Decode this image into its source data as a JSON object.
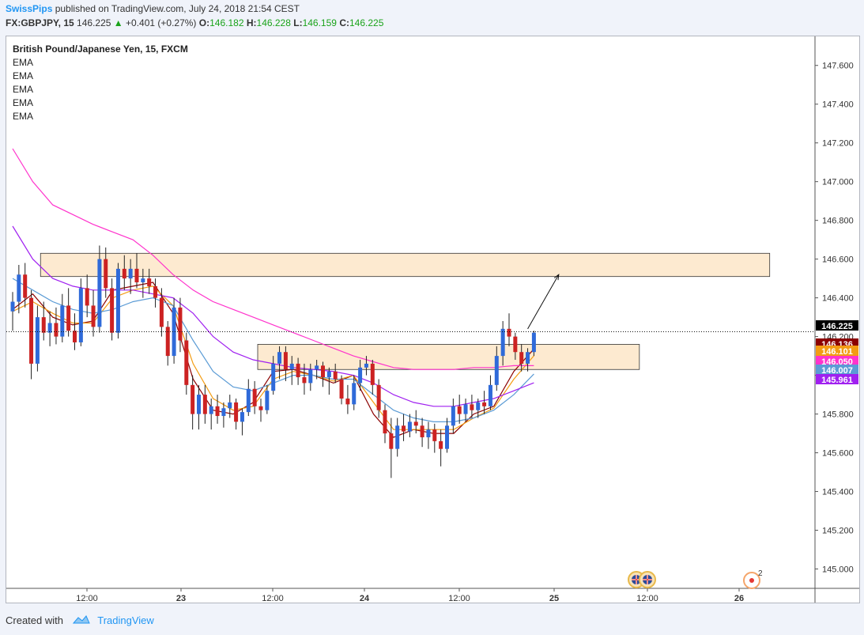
{
  "header": {
    "author": "SwissPips",
    "published": " published on TradingView.com, July 24, 2018 21:54 CEST",
    "symbol": "FX:GBPJPY, 15",
    "price": "146.225",
    "change_arrow": "▲",
    "change": "+0.401 (+0.27%)",
    "o_label": "O:",
    "o_value": "146.182",
    "h_label": "H:",
    "h_value": "146.228",
    "l_label": "L:",
    "l_value": "146.159",
    "c_label": "C:",
    "c_value": "146.225"
  },
  "legend": {
    "title": "British Pound/Japanese Yen, 15, FXCM",
    "indicators": [
      "EMA",
      "EMA",
      "EMA",
      "EMA",
      "EMA"
    ]
  },
  "footer": {
    "created_with": "Created with",
    "brand": "TradingView"
  },
  "events": {
    "count_label": "2"
  },
  "colors": {
    "up": "#2f6ad9",
    "down": "#cc2222",
    "ema_fast": "#8b0000",
    "ema_mid": "#f39c12",
    "ema_slow": "#5b9bd5",
    "ema_200": "#a020f0",
    "ema_400": "#ff33cc",
    "zone_fill": "#fde6c8",
    "zone_stroke": "#333333"
  },
  "chart_data": {
    "type": "candlestick",
    "ylim": [
      144.9,
      147.75
    ],
    "y_ticks": [
      "147.600",
      "147.400",
      "147.200",
      "147.000",
      "146.800",
      "146.600",
      "146.400",
      "146.200",
      "146.000",
      "145.800",
      "145.600",
      "145.400",
      "145.200",
      "145.000"
    ],
    "x_ticks": [
      "12:00",
      "23",
      "12:00",
      "24",
      "12:00",
      "25",
      "12:00",
      "26"
    ],
    "price_labels": [
      {
        "text": "146.225",
        "value": 146.225,
        "bg": "#000000",
        "fg": "#ffffff"
      },
      {
        "text": "146.136",
        "value": 146.136,
        "bg": "#8b0000",
        "fg": "#ffffff"
      },
      {
        "text": "146.101",
        "value": 146.101,
        "bg": "#f39c12",
        "fg": "#ffffff"
      },
      {
        "text": "146.050",
        "value": 146.05,
        "bg": "#ff33cc",
        "fg": "#ffffff"
      },
      {
        "text": "146.007",
        "value": 146.007,
        "bg": "#5b9bd5",
        "fg": "#ffffff"
      },
      {
        "text": "145.961",
        "value": 145.961,
        "bg": "#a020f0",
        "fg": "#ffffff"
      }
    ],
    "current_price": 146.225,
    "zones": [
      {
        "name": "resistance-zone",
        "from": 146.51,
        "to": 146.63,
        "start_bar": 5,
        "end_bar": 122
      },
      {
        "name": "support-zone",
        "from": 146.03,
        "to": 146.16,
        "start_bar": 40,
        "end_bar": 101
      }
    ],
    "projection": {
      "from_bar": 83,
      "from_price": 146.24,
      "to_bar": 88,
      "to_price": 146.52
    },
    "candles": [
      {
        "o": 146.33,
        "h": 146.43,
        "l": 146.23,
        "c": 146.38
      },
      {
        "o": 146.38,
        "h": 146.57,
        "l": 146.32,
        "c": 146.52
      },
      {
        "o": 146.52,
        "h": 146.58,
        "l": 146.35,
        "c": 146.4
      },
      {
        "o": 146.4,
        "h": 146.44,
        "l": 145.98,
        "c": 146.06
      },
      {
        "o": 146.06,
        "h": 146.36,
        "l": 146.02,
        "c": 146.3
      },
      {
        "o": 146.3,
        "h": 146.38,
        "l": 146.18,
        "c": 146.22
      },
      {
        "o": 146.22,
        "h": 146.33,
        "l": 146.15,
        "c": 146.27
      },
      {
        "o": 146.27,
        "h": 146.35,
        "l": 146.16,
        "c": 146.2
      },
      {
        "o": 146.2,
        "h": 146.42,
        "l": 146.17,
        "c": 146.36
      },
      {
        "o": 146.36,
        "h": 146.45,
        "l": 146.2,
        "c": 146.23
      },
      {
        "o": 146.23,
        "h": 146.32,
        "l": 146.13,
        "c": 146.17
      },
      {
        "o": 146.17,
        "h": 146.5,
        "l": 146.15,
        "c": 146.45
      },
      {
        "o": 146.45,
        "h": 146.52,
        "l": 146.3,
        "c": 146.36
      },
      {
        "o": 146.36,
        "h": 146.44,
        "l": 146.2,
        "c": 146.25
      },
      {
        "o": 146.25,
        "h": 146.67,
        "l": 146.22,
        "c": 146.6
      },
      {
        "o": 146.6,
        "h": 146.66,
        "l": 146.4,
        "c": 146.45
      },
      {
        "o": 146.45,
        "h": 146.5,
        "l": 146.18,
        "c": 146.22
      },
      {
        "o": 146.22,
        "h": 146.58,
        "l": 146.19,
        "c": 146.55
      },
      {
        "o": 146.55,
        "h": 146.62,
        "l": 146.44,
        "c": 146.5
      },
      {
        "o": 146.5,
        "h": 146.6,
        "l": 146.42,
        "c": 146.55
      },
      {
        "o": 146.55,
        "h": 146.63,
        "l": 146.45,
        "c": 146.48
      },
      {
        "o": 146.48,
        "h": 146.55,
        "l": 146.4,
        "c": 146.5
      },
      {
        "o": 146.5,
        "h": 146.55,
        "l": 146.42,
        "c": 146.46
      },
      {
        "o": 146.46,
        "h": 146.5,
        "l": 146.35,
        "c": 146.4
      },
      {
        "o": 146.4,
        "h": 146.45,
        "l": 146.2,
        "c": 146.25
      },
      {
        "o": 146.25,
        "h": 146.28,
        "l": 146.05,
        "c": 146.1
      },
      {
        "o": 146.1,
        "h": 146.4,
        "l": 146.06,
        "c": 146.35
      },
      {
        "o": 146.35,
        "h": 146.4,
        "l": 146.12,
        "c": 146.18
      },
      {
        "o": 146.18,
        "h": 146.22,
        "l": 145.9,
        "c": 145.95
      },
      {
        "o": 145.95,
        "h": 146.0,
        "l": 145.72,
        "c": 145.8
      },
      {
        "o": 145.8,
        "h": 145.95,
        "l": 145.72,
        "c": 145.9
      },
      {
        "o": 145.9,
        "h": 145.95,
        "l": 145.75,
        "c": 145.8
      },
      {
        "o": 145.8,
        "h": 145.88,
        "l": 145.72,
        "c": 145.84
      },
      {
        "o": 145.84,
        "h": 145.9,
        "l": 145.75,
        "c": 145.79
      },
      {
        "o": 145.79,
        "h": 145.86,
        "l": 145.73,
        "c": 145.83
      },
      {
        "o": 145.83,
        "h": 145.9,
        "l": 145.78,
        "c": 145.86
      },
      {
        "o": 145.86,
        "h": 145.88,
        "l": 145.72,
        "c": 145.76
      },
      {
        "o": 145.76,
        "h": 145.83,
        "l": 145.69,
        "c": 145.81
      },
      {
        "o": 145.81,
        "h": 145.98,
        "l": 145.79,
        "c": 145.93
      },
      {
        "o": 145.93,
        "h": 145.97,
        "l": 145.8,
        "c": 145.84
      },
      {
        "o": 145.84,
        "h": 145.88,
        "l": 145.76,
        "c": 145.82
      },
      {
        "o": 145.82,
        "h": 145.95,
        "l": 145.8,
        "c": 145.92
      },
      {
        "o": 145.92,
        "h": 146.1,
        "l": 145.9,
        "c": 146.06
      },
      {
        "o": 146.06,
        "h": 146.15,
        "l": 145.98,
        "c": 146.12
      },
      {
        "o": 146.12,
        "h": 146.15,
        "l": 145.97,
        "c": 146.03
      },
      {
        "o": 146.03,
        "h": 146.1,
        "l": 145.95,
        "c": 146.06
      },
      {
        "o": 146.06,
        "h": 146.09,
        "l": 145.95,
        "c": 145.99
      },
      {
        "o": 145.99,
        "h": 146.06,
        "l": 145.9,
        "c": 145.96
      },
      {
        "o": 145.96,
        "h": 146.06,
        "l": 145.92,
        "c": 146.03
      },
      {
        "o": 146.03,
        "h": 146.08,
        "l": 145.98,
        "c": 146.05
      },
      {
        "o": 146.05,
        "h": 146.07,
        "l": 145.94,
        "c": 145.99
      },
      {
        "o": 145.99,
        "h": 146.04,
        "l": 145.9,
        "c": 146.02
      },
      {
        "o": 146.02,
        "h": 146.06,
        "l": 145.96,
        "c": 145.98
      },
      {
        "o": 145.98,
        "h": 146.0,
        "l": 145.85,
        "c": 145.88
      },
      {
        "o": 145.88,
        "h": 145.95,
        "l": 145.8,
        "c": 145.85
      },
      {
        "o": 145.85,
        "h": 146.0,
        "l": 145.82,
        "c": 145.96
      },
      {
        "o": 145.96,
        "h": 146.08,
        "l": 145.92,
        "c": 146.04
      },
      {
        "o": 146.04,
        "h": 146.1,
        "l": 146.0,
        "c": 146.06
      },
      {
        "o": 146.06,
        "h": 146.08,
        "l": 145.9,
        "c": 145.95
      },
      {
        "o": 145.95,
        "h": 145.98,
        "l": 145.78,
        "c": 145.82
      },
      {
        "o": 145.82,
        "h": 145.85,
        "l": 145.65,
        "c": 145.7
      },
      {
        "o": 145.7,
        "h": 145.78,
        "l": 145.47,
        "c": 145.62
      },
      {
        "o": 145.62,
        "h": 145.78,
        "l": 145.58,
        "c": 145.74
      },
      {
        "o": 145.74,
        "h": 145.8,
        "l": 145.66,
        "c": 145.71
      },
      {
        "o": 145.71,
        "h": 145.8,
        "l": 145.68,
        "c": 145.76
      },
      {
        "o": 145.76,
        "h": 145.82,
        "l": 145.7,
        "c": 145.74
      },
      {
        "o": 145.74,
        "h": 145.78,
        "l": 145.63,
        "c": 145.68
      },
      {
        "o": 145.68,
        "h": 145.76,
        "l": 145.62,
        "c": 145.72
      },
      {
        "o": 145.72,
        "h": 145.75,
        "l": 145.6,
        "c": 145.66
      },
      {
        "o": 145.66,
        "h": 145.72,
        "l": 145.53,
        "c": 145.62
      },
      {
        "o": 145.62,
        "h": 145.78,
        "l": 145.6,
        "c": 145.74
      },
      {
        "o": 145.74,
        "h": 145.88,
        "l": 145.7,
        "c": 145.84
      },
      {
        "o": 145.84,
        "h": 145.9,
        "l": 145.75,
        "c": 145.8
      },
      {
        "o": 145.8,
        "h": 145.88,
        "l": 145.76,
        "c": 145.85
      },
      {
        "o": 145.85,
        "h": 145.9,
        "l": 145.78,
        "c": 145.82
      },
      {
        "o": 145.82,
        "h": 145.88,
        "l": 145.78,
        "c": 145.86
      },
      {
        "o": 145.86,
        "h": 145.92,
        "l": 145.8,
        "c": 145.84
      },
      {
        "o": 145.84,
        "h": 146.0,
        "l": 145.82,
        "c": 145.95
      },
      {
        "o": 145.95,
        "h": 146.15,
        "l": 145.92,
        "c": 146.1
      },
      {
        "o": 146.1,
        "h": 146.28,
        "l": 146.05,
        "c": 146.24
      },
      {
        "o": 146.24,
        "h": 146.32,
        "l": 146.15,
        "c": 146.2
      },
      {
        "o": 146.2,
        "h": 146.22,
        "l": 146.08,
        "c": 146.12
      },
      {
        "o": 146.12,
        "h": 146.16,
        "l": 146.02,
        "c": 146.06
      },
      {
        "o": 146.06,
        "h": 146.14,
        "l": 146.02,
        "c": 146.12
      },
      {
        "o": 146.12,
        "h": 146.23,
        "l": 146.1,
        "c": 146.22
      }
    ],
    "ema_series": [
      {
        "name": "EMA",
        "color": "#8b0000",
        "start": 146.34,
        "end": 146.136,
        "points": [
          146.34,
          146.42,
          146.3,
          146.26,
          146.28,
          146.44,
          146.46,
          146.48,
          146.32,
          145.98,
          145.82,
          145.8,
          145.86,
          146.02,
          146.03,
          146.0,
          145.96,
          146.0,
          145.8,
          145.68,
          145.72,
          145.7,
          145.7,
          145.8,
          145.84,
          146.02,
          146.136
        ]
      },
      {
        "name": "EMA",
        "color": "#f39c12",
        "start": 146.33,
        "end": 146.101,
        "points": [
          146.33,
          146.38,
          146.32,
          146.27,
          146.27,
          146.4,
          146.44,
          146.46,
          146.36,
          146.06,
          145.88,
          145.82,
          145.84,
          145.98,
          146.02,
          146.0,
          145.97,
          146.0,
          145.86,
          145.72,
          145.72,
          145.72,
          145.72,
          145.78,
          145.83,
          145.98,
          146.101
        ]
      },
      {
        "name": "EMA",
        "color": "#5b9bd5",
        "start": 146.5,
        "end": 146.007,
        "points": [
          146.5,
          146.44,
          146.38,
          146.34,
          146.32,
          146.34,
          146.38,
          146.4,
          146.36,
          146.18,
          146.02,
          145.94,
          145.92,
          145.96,
          146.0,
          146.0,
          145.98,
          145.98,
          145.9,
          145.82,
          145.78,
          145.76,
          145.76,
          145.78,
          145.82,
          145.9,
          146.007
        ]
      },
      {
        "name": "EMA",
        "color": "#a020f0",
        "start": 146.77,
        "end": 145.961,
        "points": [
          146.77,
          146.6,
          146.5,
          146.46,
          146.44,
          146.44,
          146.44,
          146.42,
          146.4,
          146.32,
          146.2,
          146.12,
          146.08,
          146.06,
          146.04,
          146.03,
          146.02,
          146.0,
          145.96,
          145.9,
          145.86,
          145.84,
          145.84,
          145.86,
          145.88,
          145.92,
          145.961
        ]
      },
      {
        "name": "EMA",
        "color": "#ff33cc",
        "start": 147.17,
        "end": 146.05,
        "points": [
          147.17,
          147.0,
          146.88,
          146.83,
          146.78,
          146.74,
          146.7,
          146.62,
          146.52,
          146.44,
          146.38,
          146.34,
          146.3,
          146.26,
          146.22,
          146.18,
          146.14,
          146.1,
          146.07,
          146.04,
          146.03,
          146.03,
          146.03,
          146.04,
          146.04,
          146.05,
          146.05
        ]
      }
    ]
  }
}
